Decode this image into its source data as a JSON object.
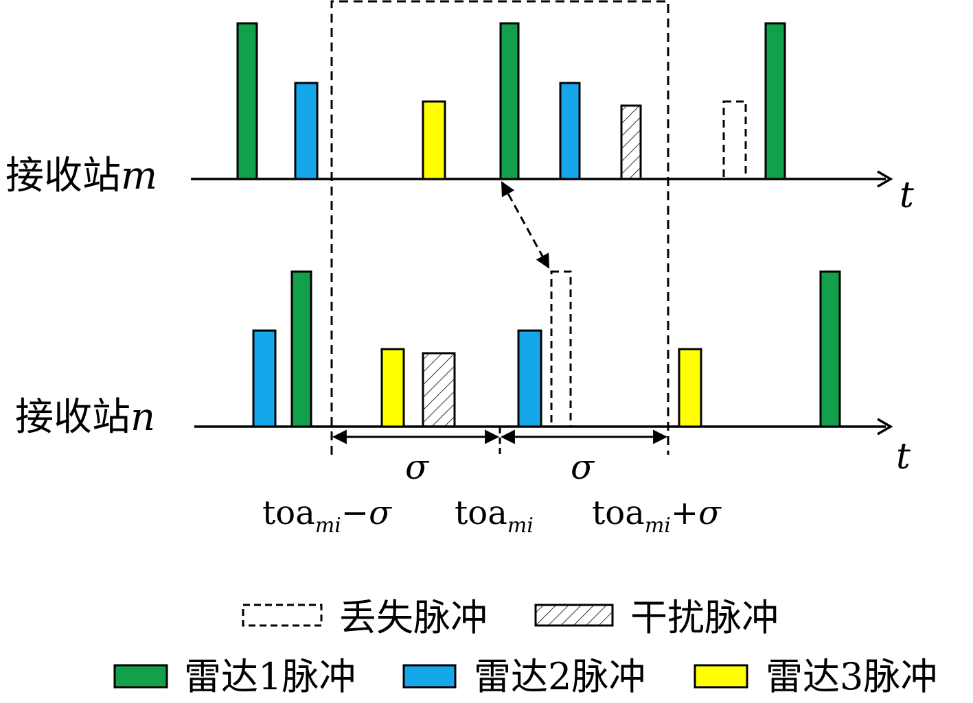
{
  "colors": {
    "radar1": "#12a14a",
    "radar2": "#16a6ea",
    "radar3": "#ffff00",
    "stroke": "#000000"
  },
  "stations": {
    "m": {
      "label": "接收站",
      "var": "m",
      "axis_var": "t"
    },
    "n": {
      "label": "接收站",
      "var": "n",
      "axis_var": "t"
    }
  },
  "window": {
    "left_sigma": "σ",
    "right_sigma": "σ",
    "labels": {
      "left": {
        "base": "toa",
        "sub": "mi",
        "suffix": "−σ"
      },
      "center": {
        "base": "toa",
        "sub": "mi",
        "suffix": ""
      },
      "right": {
        "base": "toa",
        "sub": "mi",
        "suffix": "+σ"
      }
    }
  },
  "legend": {
    "missing": "丢失脉冲",
    "interference": "干扰脉冲",
    "radar1": "雷达1脉冲",
    "radar2": "雷达2脉冲",
    "radar3": "雷达3脉冲"
  }
}
